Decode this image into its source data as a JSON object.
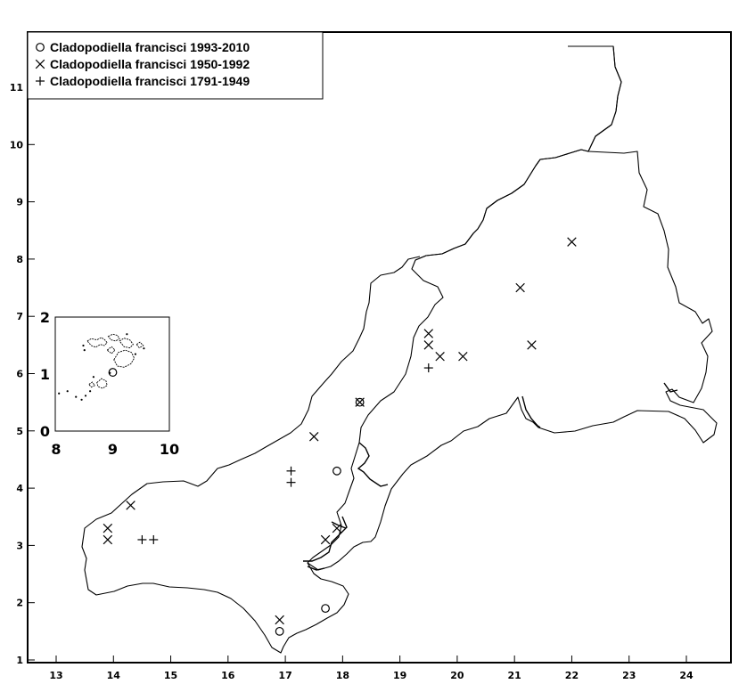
{
  "chart_data": {
    "type": "scatter",
    "title": "",
    "xlabel": "",
    "ylabel": "",
    "xlim": [
      12.6,
      24.8
    ],
    "ylim": [
      0.95,
      11.9
    ],
    "x_ticks": [
      13,
      14,
      15,
      16,
      17,
      18,
      19,
      20,
      21,
      22,
      23,
      24
    ],
    "y_ticks": [
      1,
      2,
      3,
      4,
      5,
      6,
      7,
      8,
      9,
      10,
      11
    ],
    "legend_position": "top-left",
    "series": [
      {
        "name": "Cladopodiella francisci 1993-2010",
        "marker": "circle",
        "points": [
          [
            18.3,
            5.5
          ],
          [
            17.9,
            4.3
          ],
          [
            17.7,
            1.9
          ],
          [
            16.9,
            1.5
          ]
        ]
      },
      {
        "name": "Cladopodiella francisci 1950-1992",
        "marker": "x",
        "points": [
          [
            22.0,
            8.3
          ],
          [
            21.1,
            7.5
          ],
          [
            21.3,
            6.5
          ],
          [
            19.5,
            6.7
          ],
          [
            19.5,
            6.5
          ],
          [
            19.7,
            6.3
          ],
          [
            20.1,
            6.3
          ],
          [
            18.3,
            5.5
          ],
          [
            17.5,
            4.9
          ],
          [
            14.3,
            3.7
          ],
          [
            13.9,
            3.3
          ],
          [
            13.9,
            3.1
          ],
          [
            17.9,
            3.3
          ],
          [
            17.7,
            3.1
          ],
          [
            16.9,
            1.7
          ]
        ]
      },
      {
        "name": "Cladopodiella francisci 1791-1949",
        "marker": "plus",
        "points": [
          [
            19.5,
            6.1
          ],
          [
            17.1,
            4.3
          ],
          [
            17.1,
            4.1
          ],
          [
            14.5,
            3.1
          ],
          [
            14.7,
            3.1
          ]
        ]
      }
    ],
    "inset": {
      "xlim": [
        8,
        10
      ],
      "ylim": [
        0,
        2
      ],
      "x_ticks": [
        8,
        9,
        10
      ],
      "y_ticks": [
        0,
        1,
        2
      ]
    }
  }
}
